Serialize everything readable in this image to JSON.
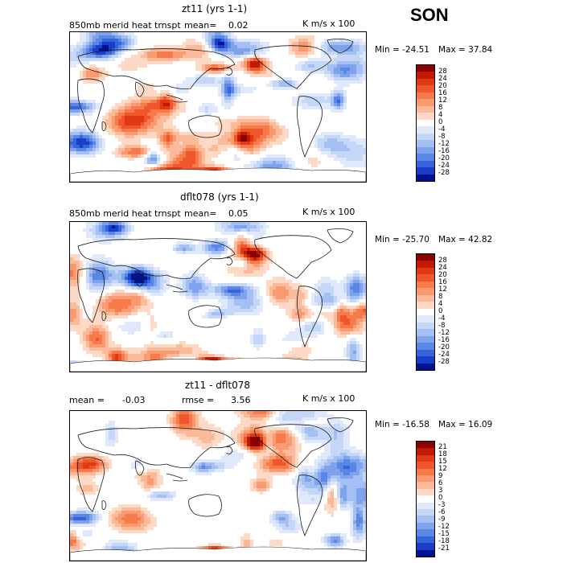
{
  "season": "SON",
  "colors": {
    "pos": [
      "#8c0000",
      "#c21a00",
      "#e03a14",
      "#f0562c",
      "#f77a4a",
      "#f99a70",
      "#fbbb9a",
      "#fdd9c6",
      "#ffffff"
    ],
    "neg": [
      "#ffffff",
      "#dfe9fb",
      "#c5d7f7",
      "#a4c0f2",
      "#7ea3ec",
      "#5a86e6",
      "#3564dc",
      "#1b3ec8",
      "#00128f"
    ]
  },
  "panels": [
    {
      "title": "zt11 (yrs 1-1)",
      "left_label": "850mb merid heat trnspt",
      "mean_label": "mean=",
      "mean_value": "0.02",
      "units": "K m/s x 100",
      "min_text": "Min = -24.51",
      "max_text": "Max = 37.84",
      "colorbar_ticks": [
        "28",
        "24",
        "20",
        "16",
        "12",
        "8",
        "4",
        "0",
        "-4",
        "-8",
        "-12",
        "-16",
        "-20",
        "-24",
        "-28"
      ]
    },
    {
      "title": "dflt078 (yrs 1-1)",
      "left_label": "850mb merid heat trnspt",
      "mean_label": "mean=",
      "mean_value": "0.05",
      "units": "K m/s x 100",
      "min_text": "Min = -25.70",
      "max_text": "Max = 42.82",
      "colorbar_ticks": [
        "28",
        "24",
        "20",
        "16",
        "12",
        "8",
        "4",
        "0",
        "-4",
        "-8",
        "-12",
        "-16",
        "-20",
        "-24",
        "-28"
      ]
    },
    {
      "title": "zt11 - dflt078",
      "left_label": "mean =",
      "mean_value": "-0.03",
      "rmse_label": "rmse =",
      "rmse_value": "3.56",
      "units": "K m/s x 100",
      "min_text": "Min = -16.58",
      "max_text": "Max = 16.09",
      "colorbar_ticks": [
        "21",
        "18",
        "15",
        "12",
        "9",
        "6",
        "3",
        "0",
        "-3",
        "-6",
        "-9",
        "-12",
        "-15",
        "-18",
        "-21"
      ]
    }
  ],
  "chart_data": [
    {
      "type": "heatmap",
      "title": "zt11 (yrs 1-1)",
      "variable": "850mb merid heat trnspt",
      "units": "K m/s x 100",
      "mean": 0.02,
      "min": -24.51,
      "max": 37.84,
      "contour_levels": [
        -28,
        -24,
        -20,
        -16,
        -12,
        -8,
        -4,
        0,
        4,
        8,
        12,
        16,
        20,
        24,
        28
      ]
    },
    {
      "type": "heatmap",
      "title": "dflt078 (yrs 1-1)",
      "variable": "850mb merid heat trnspt",
      "units": "K m/s x 100",
      "mean": 0.05,
      "min": -25.7,
      "max": 42.82,
      "contour_levels": [
        -28,
        -24,
        -20,
        -16,
        -12,
        -8,
        -4,
        0,
        4,
        8,
        12,
        16,
        20,
        24,
        28
      ]
    },
    {
      "type": "heatmap",
      "title": "zt11 - dflt078",
      "units": "K m/s x 100",
      "mean": -0.03,
      "rmse": 3.56,
      "min": -16.58,
      "max": 16.09,
      "contour_levels": [
        -21,
        -18,
        -15,
        -12,
        -9,
        -6,
        -3,
        0,
        3,
        6,
        9,
        12,
        15,
        18,
        21
      ]
    }
  ]
}
